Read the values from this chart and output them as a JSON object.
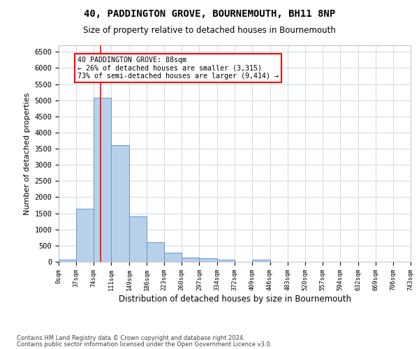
{
  "title": "40, PADDINGTON GROVE, BOURNEMOUTH, BH11 8NP",
  "subtitle": "Size of property relative to detached houses in Bournemouth",
  "xlabel": "Distribution of detached houses by size in Bournemouth",
  "ylabel": "Number of detached properties",
  "footnote1": "Contains HM Land Registry data © Crown copyright and database right 2024.",
  "footnote2": "Contains public sector information licensed under the Open Government Licence v3.0.",
  "bar_color": "#b8d0ea",
  "bar_edge_color": "#6699cc",
  "red_line_x": 88,
  "annotation_text": "40 PADDINGTON GROVE: 88sqm\n← 26% of detached houses are smaller (3,315)\n73% of semi-detached houses are larger (9,414) →",
  "bin_edges": [
    0,
    37,
    74,
    111,
    149,
    186,
    223,
    260,
    297,
    334,
    372,
    409,
    446,
    483,
    520,
    557,
    594,
    632,
    669,
    706,
    743
  ],
  "bin_counts": [
    75,
    1640,
    5070,
    3600,
    1400,
    610,
    290,
    130,
    110,
    75,
    0,
    75,
    0,
    0,
    0,
    0,
    0,
    0,
    0,
    0
  ],
  "ylim": [
    0,
    6700
  ],
  "yticks": [
    0,
    500,
    1000,
    1500,
    2000,
    2500,
    3000,
    3500,
    4000,
    4500,
    5000,
    5500,
    6000,
    6500
  ],
  "background_color": "#ffffff",
  "grid_color": "#ced8e8",
  "figsize": [
    6.0,
    5.0
  ],
  "dpi": 100
}
